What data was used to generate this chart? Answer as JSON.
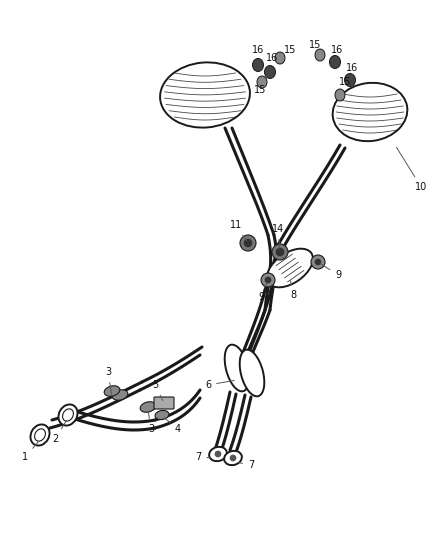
{
  "bg_color": "#ffffff",
  "line_color": "#1a1a1a",
  "lw_main": 1.4,
  "lw_pipe": 2.2,
  "lw_thin": 0.7,
  "figsize": [
    4.38,
    5.33
  ],
  "dpi": 100
}
